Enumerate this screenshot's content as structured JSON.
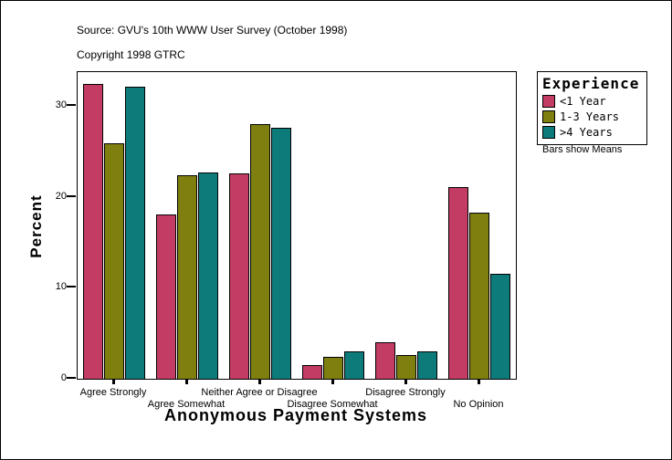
{
  "header": {
    "source": "Source: GVU's 10th WWW User Survey (October 1998)",
    "copyright": "Copyright 1998 GTRC"
  },
  "legend": {
    "title": "Experience",
    "note": "Bars show Means"
  },
  "chart_data": {
    "type": "bar",
    "title": "",
    "xlabel": "Anonymous Payment Systems",
    "ylabel": "Percent",
    "categories": [
      "Agree Strongly",
      "Agree Somewhat",
      "Neither Agree or Disagree",
      "Disagree Somewhat",
      "Disagree Strongly",
      "No Opinion"
    ],
    "series": [
      {
        "name": "<1 Year",
        "color": "#C33C64",
        "values": [
          32.4,
          18.1,
          22.6,
          1.5,
          4.0,
          21.1
        ]
      },
      {
        "name": "1-3 Years",
        "color": "#7F7F0F",
        "values": [
          25.9,
          22.4,
          28.0,
          2.4,
          2.6,
          18.3
        ]
      },
      {
        "name": ">4 Years",
        "color": "#0E7B7B",
        "values": [
          32.1,
          22.7,
          27.6,
          3.0,
          3.0,
          11.5
        ]
      }
    ],
    "yticks": [
      0,
      10,
      20,
      30
    ],
    "ylim": [
      0,
      33.7
    ],
    "grid": false,
    "legend_position": "right",
    "bars_show": "Means",
    "units": "percent"
  }
}
